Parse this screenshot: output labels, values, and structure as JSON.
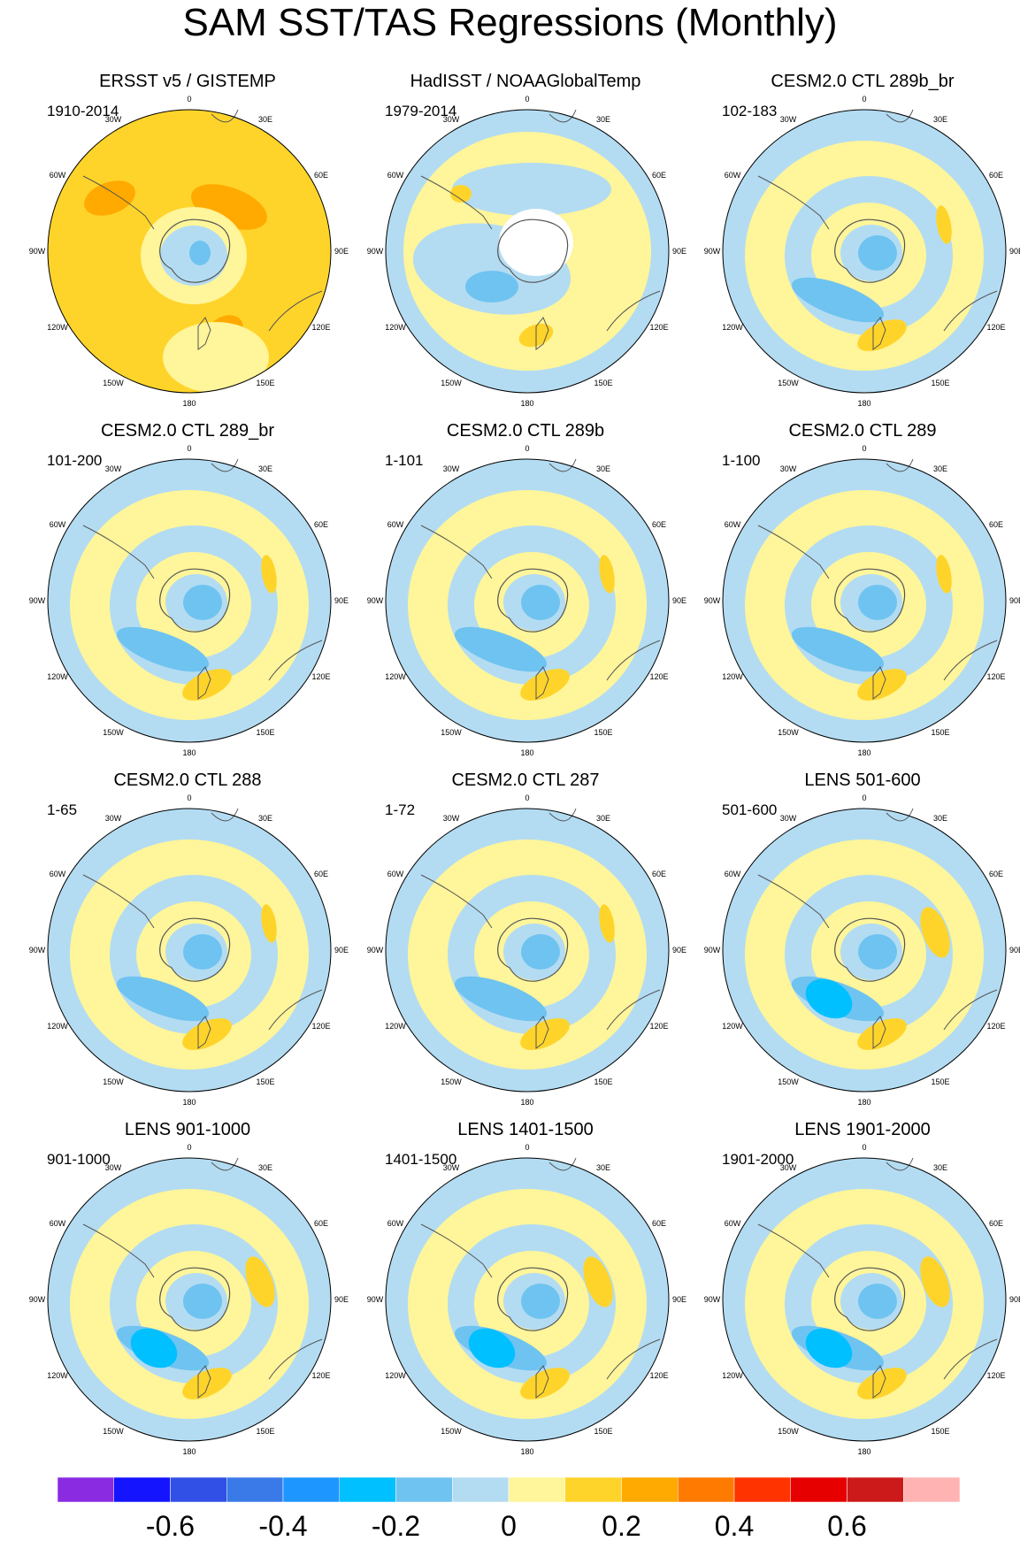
{
  "title": "SAM SST/TAS Regressions (Monthly)",
  "chart_data": {
    "type": "heatmap",
    "projection": "polar-stereographic-south",
    "longitude_labels": [
      "0",
      "30E",
      "60E",
      "90E",
      "120E",
      "150E",
      "180",
      "150W",
      "120W",
      "90W",
      "60W",
      "30W"
    ],
    "panels": [
      {
        "title": "ERSST v5 / GISTEMP",
        "years": "1910-2014"
      },
      {
        "title": "HadISST / NOAAGlobalTemp",
        "years": "1979-2014"
      },
      {
        "title": "CESM2.0 CTL 289b_br",
        "years": "102-183"
      },
      {
        "title": "CESM2.0 CTL 289_br",
        "years": "101-200"
      },
      {
        "title": "CESM2.0 CTL 289b",
        "years": "1-101"
      },
      {
        "title": "CESM2.0 CTL 289",
        "years": "1-100"
      },
      {
        "title": "CESM2.0 CTL 288",
        "years": "1-65"
      },
      {
        "title": "CESM2.0 CTL 287",
        "years": "1-72"
      },
      {
        "title": "LENS 501-600",
        "years": "501-600"
      },
      {
        "title": "LENS 901-1000",
        "years": "901-1000"
      },
      {
        "title": "LENS 1401-1500",
        "years": "1401-1500"
      },
      {
        "title": "LENS 1901-2000",
        "years": "1901-2000"
      }
    ],
    "colorbar": {
      "levels": [
        -0.7,
        -0.6,
        -0.5,
        -0.4,
        -0.3,
        -0.2,
        -0.1,
        0,
        0.1,
        0.2,
        0.3,
        0.4,
        0.5,
        0.6,
        0.7
      ],
      "colors": [
        "#8a2be2",
        "#1414ff",
        "#3050e6",
        "#3a7ae8",
        "#1e96ff",
        "#00c0ff",
        "#6fc3f0",
        "#b3dcf2",
        "#fff59a",
        "#ffd42a",
        "#ffaa00",
        "#ff7a00",
        "#ff3300",
        "#e60000",
        "#cc1a1a",
        "#ffb3b3"
      ],
      "tick_labels": [
        "-0.6",
        "-0.4",
        "-0.2",
        "0",
        "0.2",
        "0.4",
        "0.6"
      ]
    }
  },
  "colors": {
    "ocean_neg": "#b3dcf2",
    "ocean_neg2": "#6fc3f0",
    "ocean_neg3": "#00c0ff",
    "pos1": "#fff59a",
    "pos2": "#ffd42a",
    "pos3": "#ffaa00",
    "land_outline": "#555555"
  }
}
